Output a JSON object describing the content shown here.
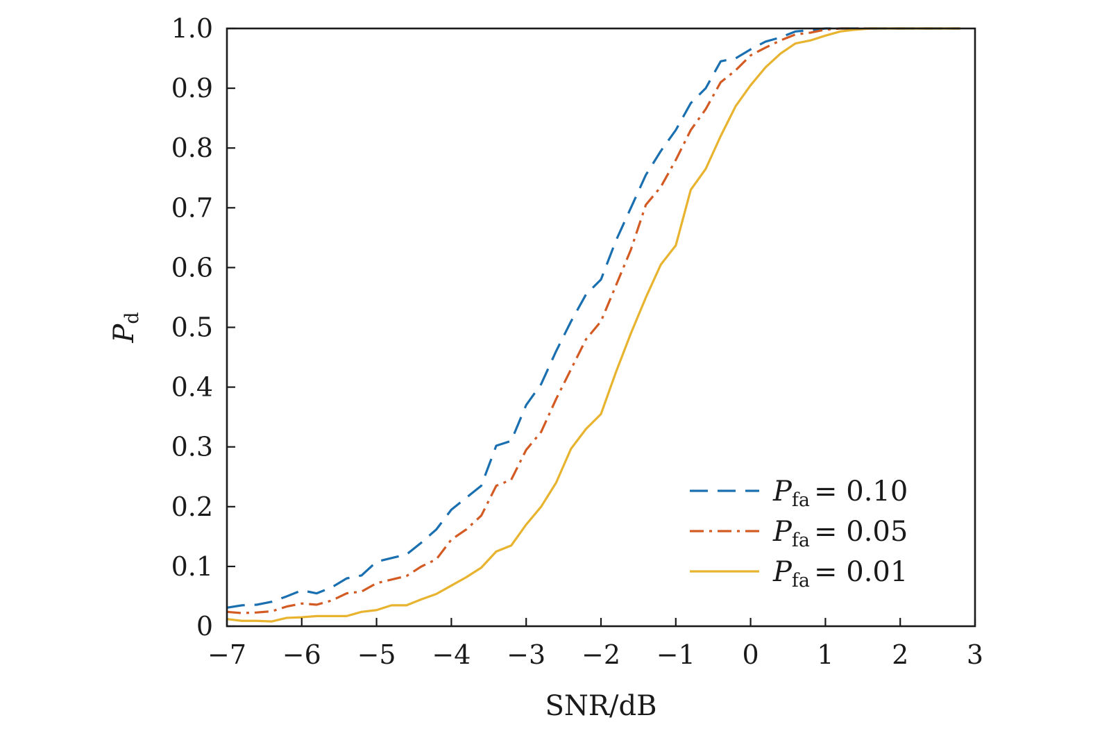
{
  "chart_data": {
    "type": "line",
    "title": "",
    "xlabel": "SNR/dB",
    "ylabel_main": "P",
    "ylabel_sub": "d",
    "xlim": [
      -7,
      3
    ],
    "ylim": [
      0,
      1
    ],
    "xticks": [
      -7,
      -6,
      -5,
      -4,
      -3,
      -2,
      -1,
      0,
      1,
      2,
      3
    ],
    "xtick_labels": [
      "−7",
      "−6",
      "−5",
      "−4",
      "−3",
      "−2",
      "−1",
      "0",
      "1",
      "2",
      "3"
    ],
    "yticks": [
      0,
      0.1,
      0.2,
      0.3,
      0.4,
      0.5,
      0.6,
      0.7,
      0.8,
      0.9,
      1.0
    ],
    "ytick_labels": [
      "0",
      "0.1",
      "0.2",
      "0.3",
      "0.4",
      "0.5",
      "0.6",
      "0.7",
      "0.8",
      "0.9",
      "1.0"
    ],
    "grid": false,
    "legend_position": "lower-right",
    "series": [
      {
        "name_main": "P",
        "name_sub": "fa",
        "name_eq": "= 0.10",
        "style": "dashed",
        "color": "#1a6fb0",
        "x": [
          -7.0,
          -6.8,
          -6.6,
          -6.4,
          -6.2,
          -6.0,
          -5.8,
          -5.6,
          -5.4,
          -5.2,
          -5.0,
          -4.8,
          -4.6,
          -4.4,
          -4.2,
          -4.0,
          -3.8,
          -3.6,
          -3.4,
          -3.2,
          -3.0,
          -2.8,
          -2.6,
          -2.4,
          -2.2,
          -2.0,
          -1.8,
          -1.6,
          -1.4,
          -1.2,
          -1.0,
          -0.8,
          -0.6,
          -0.4,
          -0.2,
          0.0,
          0.2,
          0.4,
          0.6,
          0.8,
          1.0,
          1.2,
          1.4,
          1.6,
          1.8,
          2.0,
          2.2,
          2.4,
          2.6,
          2.8
        ],
        "y": [
          0.031,
          0.035,
          0.036,
          0.041,
          0.05,
          0.06,
          0.055,
          0.065,
          0.08,
          0.085,
          0.108,
          0.114,
          0.12,
          0.14,
          0.162,
          0.195,
          0.215,
          0.235,
          0.302,
          0.31,
          0.37,
          0.405,
          0.46,
          0.51,
          0.555,
          0.58,
          0.645,
          0.7,
          0.755,
          0.795,
          0.83,
          0.875,
          0.9,
          0.945,
          0.95,
          0.965,
          0.978,
          0.985,
          0.995,
          0.997,
          1.0,
          1.0,
          1.0,
          1.0,
          1.0,
          1.0,
          1.0,
          1.0,
          1.0,
          1.0
        ]
      },
      {
        "name_main": "P",
        "name_sub": "fa",
        "name_eq": "= 0.05",
        "style": "dashdot",
        "color": "#d35a22",
        "x": [
          -7.0,
          -6.8,
          -6.6,
          -6.4,
          -6.2,
          -6.0,
          -5.8,
          -5.6,
          -5.4,
          -5.2,
          -5.0,
          -4.8,
          -4.6,
          -4.4,
          -4.2,
          -4.0,
          -3.8,
          -3.6,
          -3.4,
          -3.2,
          -3.0,
          -2.8,
          -2.6,
          -2.4,
          -2.2,
          -2.0,
          -1.8,
          -1.6,
          -1.4,
          -1.2,
          -1.0,
          -0.8,
          -0.6,
          -0.4,
          -0.2,
          0.0,
          0.2,
          0.4,
          0.6,
          0.8,
          1.0,
          1.2,
          1.4,
          1.6,
          1.8,
          2.0,
          2.2,
          2.4,
          2.6,
          2.8
        ],
        "y": [
          0.024,
          0.022,
          0.023,
          0.025,
          0.033,
          0.038,
          0.036,
          0.043,
          0.055,
          0.058,
          0.072,
          0.078,
          0.084,
          0.1,
          0.112,
          0.145,
          0.162,
          0.185,
          0.235,
          0.245,
          0.295,
          0.325,
          0.38,
          0.43,
          0.48,
          0.51,
          0.57,
          0.63,
          0.705,
          0.735,
          0.78,
          0.83,
          0.865,
          0.91,
          0.93,
          0.955,
          0.968,
          0.98,
          0.99,
          0.993,
          0.998,
          1.0,
          1.0,
          1.0,
          1.0,
          1.0,
          1.0,
          1.0,
          1.0,
          1.0
        ]
      },
      {
        "name_main": "P",
        "name_sub": "fa",
        "name_eq": "= 0.01",
        "style": "solid",
        "color": "#e8b32e",
        "x": [
          -7.0,
          -6.8,
          -6.6,
          -6.4,
          -6.2,
          -6.0,
          -5.8,
          -5.6,
          -5.4,
          -5.2,
          -5.0,
          -4.8,
          -4.6,
          -4.4,
          -4.2,
          -4.0,
          -3.8,
          -3.6,
          -3.4,
          -3.2,
          -3.0,
          -2.8,
          -2.6,
          -2.4,
          -2.2,
          -2.0,
          -1.8,
          -1.6,
          -1.4,
          -1.2,
          -1.0,
          -0.8,
          -0.6,
          -0.4,
          -0.2,
          0.0,
          0.2,
          0.4,
          0.6,
          0.8,
          1.0,
          1.2,
          1.4,
          1.6,
          1.8,
          2.0,
          2.2,
          2.4,
          2.6,
          2.8
        ],
        "y": [
          0.012,
          0.009,
          0.009,
          0.008,
          0.014,
          0.015,
          0.017,
          0.017,
          0.017,
          0.024,
          0.027,
          0.035,
          0.035,
          0.045,
          0.054,
          0.068,
          0.082,
          0.098,
          0.125,
          0.135,
          0.17,
          0.2,
          0.24,
          0.297,
          0.33,
          0.355,
          0.425,
          0.49,
          0.55,
          0.605,
          0.637,
          0.73,
          0.765,
          0.82,
          0.87,
          0.905,
          0.935,
          0.958,
          0.975,
          0.98,
          0.988,
          0.995,
          0.998,
          1.0,
          1.0,
          1.0,
          1.0,
          1.0,
          1.0,
          1.0
        ]
      }
    ]
  }
}
